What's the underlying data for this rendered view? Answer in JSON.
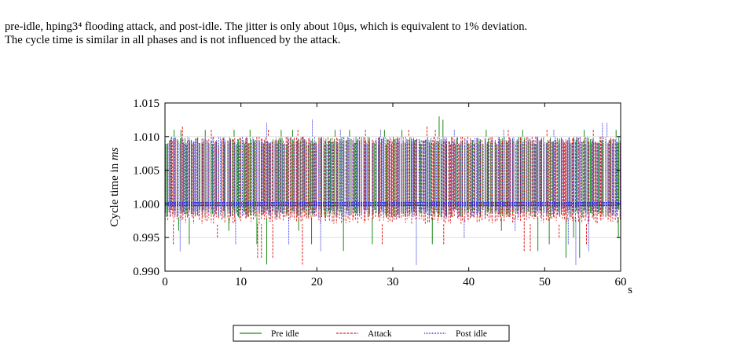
{
  "caption": {
    "line1": "pre-idle, hping3⁴ flooding attack, and post-idle.  The jitter is only about 10μs, which is equivalent to 1% deviation.",
    "line2": "The cycle time is similar in all phases and is not influenced by the attack."
  },
  "chart_data": {
    "type": "line",
    "title": "",
    "xlabel": "s",
    "ylabel": "Cycle time in ms",
    "xlim": [
      0,
      60
    ],
    "ylim": [
      0.99,
      1.015
    ],
    "xticks": [
      "0",
      "10",
      "20",
      "30",
      "40",
      "50",
      "60"
    ],
    "yticks": [
      "0.990",
      "0.995",
      "1.000",
      "1.005",
      "1.010",
      "1.015"
    ],
    "grid": true,
    "legend_position": "bottom-center",
    "series": [
      {
        "name": "Pre idle",
        "color": "#1a8a1a",
        "style": "solid",
        "band": [
          0.998,
          1.01
        ],
        "spikes_high": [
          [
            1.2,
            1.011
          ],
          [
            2.1,
            1.011
          ],
          [
            5.3,
            1.011
          ],
          [
            9.1,
            1.011
          ],
          [
            11.2,
            1.011
          ],
          [
            15.3,
            1.011
          ],
          [
            16.8,
            1.011
          ],
          [
            22.4,
            1.011
          ],
          [
            24.3,
            1.011
          ],
          [
            28.9,
            1.011
          ],
          [
            31.2,
            1.011
          ],
          [
            36.1,
            1.013
          ],
          [
            36.6,
            1.0125
          ],
          [
            42.3,
            1.011
          ],
          [
            47.1,
            1.011
          ],
          [
            55.2,
            1.011
          ],
          [
            59.4,
            1.011
          ]
        ],
        "spikes_low": [
          [
            1.8,
            0.996
          ],
          [
            3.2,
            0.994
          ],
          [
            8.4,
            0.996
          ],
          [
            12.1,
            0.994
          ],
          [
            13.4,
            0.991
          ],
          [
            17.6,
            0.996
          ],
          [
            19.3,
            0.994
          ],
          [
            23.5,
            0.993
          ],
          [
            27.3,
            0.994
          ],
          [
            35.2,
            0.994
          ],
          [
            44.3,
            0.996
          ],
          [
            49.1,
            0.993
          ],
          [
            50.6,
            0.994
          ],
          [
            52.8,
            0.992
          ],
          [
            53.8,
            0.995
          ],
          [
            54.6,
            0.992
          ],
          [
            59.7,
            0.995
          ]
        ]
      },
      {
        "name": "Attack",
        "color": "#e02020",
        "style": "dashed",
        "band": [
          0.997,
          1.01
        ],
        "spikes_high": [
          [
            2.3,
            1.0115
          ],
          [
            6.1,
            1.011
          ],
          [
            13.6,
            1.011
          ],
          [
            17.5,
            1.011
          ],
          [
            26.4,
            1.011
          ],
          [
            32.1,
            1.011
          ],
          [
            34.5,
            1.0115
          ],
          [
            35.6,
            1.011
          ],
          [
            45.2,
            1.011
          ],
          [
            50.3,
            1.011
          ],
          [
            56.4,
            1.011
          ]
        ],
        "spikes_low": [
          [
            1.1,
            0.994
          ],
          [
            6.9,
            0.995
          ],
          [
            12.2,
            0.992
          ],
          [
            12.7,
            0.992
          ],
          [
            14.2,
            0.992
          ],
          [
            18.1,
            0.991
          ],
          [
            28.6,
            0.994
          ],
          [
            36.7,
            0.994
          ],
          [
            47.3,
            0.993
          ],
          [
            48.1,
            0.993
          ],
          [
            51.9,
            0.995
          ],
          [
            55.5,
            0.994
          ]
        ]
      },
      {
        "name": "Post idle",
        "color": "#2020e0",
        "style": "dotted",
        "band": [
          0.998,
          1.01
        ],
        "spikes_high": [
          [
            13.4,
            1.012
          ],
          [
            19.4,
            1.0125
          ],
          [
            23.1,
            1.011
          ],
          [
            28.4,
            1.011
          ],
          [
            38.1,
            1.011
          ],
          [
            44.6,
            1.011
          ],
          [
            51.2,
            1.011
          ],
          [
            57.6,
            1.012
          ],
          [
            58.2,
            1.012
          ]
        ],
        "spikes_low": [
          [
            2.0,
            0.993
          ],
          [
            9.3,
            0.994
          ],
          [
            16.3,
            0.994
          ],
          [
            20.5,
            0.993
          ],
          [
            33.1,
            0.991
          ],
          [
            39.4,
            0.995
          ],
          [
            46.1,
            0.996
          ],
          [
            53.1,
            0.994
          ],
          [
            54.1,
            0.991
          ],
          [
            55.8,
            0.993
          ]
        ]
      }
    ]
  }
}
